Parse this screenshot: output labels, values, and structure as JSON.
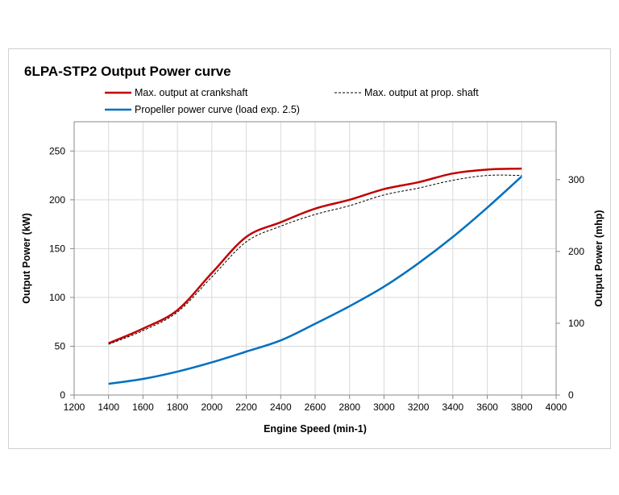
{
  "chart_data": {
    "type": "line",
    "title": "6LPA-STP2 Output Power curve",
    "xlabel": "Engine Speed (min-1)",
    "ylabel": "Output Power (kW)",
    "y2label": "Output Power (mhp)",
    "xlim": [
      1200,
      4000
    ],
    "xticks": [
      1200,
      1400,
      1600,
      1800,
      2000,
      2200,
      2400,
      2600,
      2800,
      3000,
      3200,
      3400,
      3600,
      3800,
      4000
    ],
    "ylim": [
      0,
      280
    ],
    "yticks": [
      0,
      50,
      100,
      150,
      200,
      250
    ],
    "y2lim": [
      0,
      380.7
    ],
    "y2ticks": [
      0,
      100,
      200,
      300
    ],
    "grid": true,
    "legend_placement": "top",
    "x": [
      1400,
      1600,
      1800,
      2000,
      2200,
      2400,
      2600,
      2800,
      3000,
      3200,
      3400,
      3600,
      3800
    ],
    "series": [
      {
        "name": "Max. output at crankshaft",
        "color": "#c00000",
        "style": "solid",
        "values": [
          53,
          68,
          87,
          125,
          162,
          177,
          191,
          200,
          211,
          218,
          227,
          231,
          232
        ]
      },
      {
        "name": "Max. output at prop. shaft",
        "color": "#000000",
        "style": "dashed",
        "values": [
          52,
          66,
          85,
          121,
          157,
          173,
          185,
          194,
          205,
          212,
          220,
          225,
          225
        ]
      },
      {
        "name": "Propeller power curve (load exp. 2.5)",
        "color": "#0070c0",
        "style": "solid",
        "values": [
          11.5,
          16.5,
          24,
          33.5,
          44.5,
          56,
          73,
          91,
          111,
          135,
          162,
          192,
          224
        ]
      }
    ]
  }
}
